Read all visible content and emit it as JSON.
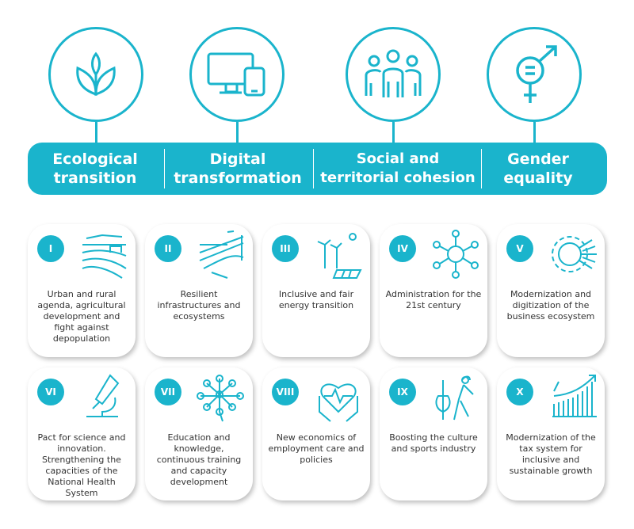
{
  "accent_color": "#1ab4cc",
  "pillars": [
    {
      "icon": "leaves-icon",
      "label_line1": "Ecological",
      "label_line2": "transition"
    },
    {
      "icon": "devices-icon",
      "label_line1": "Digital",
      "label_line2": "transformation"
    },
    {
      "icon": "people-icon",
      "label_line1": "Social and",
      "label_line2": "territorial cohesion"
    },
    {
      "icon": "gender-icon",
      "label_line1": "Gender",
      "label_line2": "equality"
    }
  ],
  "cards": [
    {
      "numeral": "I",
      "icon": "rural-landscape-icon",
      "text": "Urban and rural agenda, agricultural development and fight against depopulation"
    },
    {
      "numeral": "II",
      "icon": "bridge-infrastructure-icon",
      "text": "Resilient infrastructures and ecosystems"
    },
    {
      "numeral": "III",
      "icon": "wind-solar-icon",
      "text": "Inclusive and fair energy transition"
    },
    {
      "numeral": "IV",
      "icon": "network-hub-icon",
      "text": "Administration for the 21st century"
    },
    {
      "numeral": "V",
      "icon": "gear-circuit-icon",
      "text": "Modernization and digitization of the business ecosystem"
    },
    {
      "numeral": "VI",
      "icon": "microscope-icon",
      "text": "Pact for science and innovation. Strengthening the capacities of the National Health System"
    },
    {
      "numeral": "VII",
      "icon": "neural-network-icon",
      "text": "Education and knowledge, continuous training and capacity development"
    },
    {
      "numeral": "VIII",
      "icon": "heart-hands-icon",
      "text": "New economics of employment care and policies"
    },
    {
      "numeral": "IX",
      "icon": "violin-athlete-icon",
      "text": "Boosting the culture and sports industry"
    },
    {
      "numeral": "X",
      "icon": "growth-chart-icon",
      "text": "Modernization of the tax system for inclusive and sustainable growth"
    }
  ]
}
